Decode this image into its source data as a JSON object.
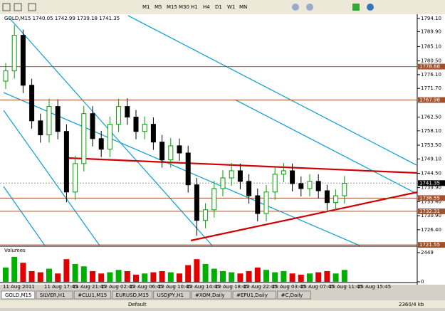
{
  "toolbar": {
    "timeframes": [
      "M1",
      "M5",
      "M15",
      "M30",
      "H1",
      "H4",
      "D1",
      "W1",
      "MN"
    ]
  },
  "chart": {
    "header": {
      "symbol": "GOLD,M15",
      "open": 1740.05,
      "high": 1742.99,
      "low": 1739.18,
      "close": 1741.35
    },
    "ylim": [
      1721.35,
      1795
    ],
    "yticks": [
      {
        "value": 1794.1,
        "label": "1794.10"
      },
      {
        "value": 1789.9,
        "label": "1789.90"
      },
      {
        "value": 1785.1,
        "label": "1785.10"
      },
      {
        "value": 1780.5,
        "label": "1780.50"
      },
      {
        "value": 1776.1,
        "label": "1776.10"
      },
      {
        "value": 1771.7,
        "label": "1771.70"
      },
      {
        "value": 1762.5,
        "label": "1762.50"
      },
      {
        "value": 1758.1,
        "label": "1758.10"
      },
      {
        "value": 1753.5,
        "label": "1753.50"
      },
      {
        "value": 1749.1,
        "label": "1749.10"
      },
      {
        "value": 1744.5,
        "label": "1744.50"
      },
      {
        "value": 1739.9,
        "label": "1739.90"
      },
      {
        "value": 1735.4,
        "label": "1735.40"
      },
      {
        "value": 1730.9,
        "label": "1730.90"
      },
      {
        "value": 1726.4,
        "label": "1726.40"
      }
    ],
    "levels": [
      1778.68,
      1767.98,
      1736.55,
      1732.31,
      1721.55
    ],
    "up_color": "#00a000",
    "down_color": "#000000",
    "candles": {
      "open": [
        1774.0,
        1777.3,
        1788.7,
        1772.7,
        1761.3,
        1756.8,
        1765.9,
        1757.9,
        1738.5,
        1747.6,
        1763.6,
        1755.6,
        1752.2,
        1760.2,
        1765.9,
        1762.5,
        1757.9,
        1760.2,
        1754.5,
        1748.8,
        1753.3,
        1751.0,
        1740.8,
        1729.4,
        1732.8,
        1739.6,
        1743.0,
        1745.3,
        1741.9,
        1737.3,
        1731.6,
        1738.5,
        1744.2,
        1745.3,
        1741.2,
        1739.6,
        1741.9,
        1738.9,
        1735.1,
        1737.3
      ],
      "high": [
        1779.8,
        1792.0,
        1790.5,
        1774.8,
        1763.6,
        1768.4,
        1768.2,
        1760.2,
        1750.1,
        1766.1,
        1766.0,
        1758.1,
        1762.7,
        1768.4,
        1768.5,
        1764.8,
        1762.7,
        1762.4,
        1756.8,
        1755.8,
        1755.6,
        1753.3,
        1743.0,
        1734.9,
        1742.1,
        1745.5,
        1747.8,
        1747.6,
        1744.2,
        1739.6,
        1740.8,
        1746.7,
        1747.8,
        1747.6,
        1743.5,
        1744.2,
        1744.2,
        1740.8,
        1739.4,
        1743.6
      ],
      "low": [
        1771.5,
        1774.8,
        1770.2,
        1758.8,
        1754.3,
        1754.3,
        1755.4,
        1735.2,
        1736.0,
        1745.1,
        1753.1,
        1749.7,
        1749.7,
        1757.7,
        1760.0,
        1755.4,
        1755.4,
        1752.0,
        1746.3,
        1746.3,
        1748.5,
        1738.3,
        1724.5,
        1726.9,
        1730.3,
        1737.1,
        1740.5,
        1739.4,
        1734.8,
        1729.1,
        1729.1,
        1736.0,
        1741.7,
        1738.7,
        1737.1,
        1737.1,
        1736.4,
        1732.6,
        1732.6,
        1734.8
      ],
      "close": [
        1777.3,
        1788.7,
        1772.7,
        1761.3,
        1756.8,
        1765.9,
        1757.9,
        1738.5,
        1747.6,
        1763.6,
        1755.6,
        1752.2,
        1760.2,
        1765.9,
        1762.5,
        1757.9,
        1760.2,
        1754.5,
        1748.8,
        1753.3,
        1751.0,
        1740.8,
        1729.4,
        1732.8,
        1739.6,
        1743.0,
        1745.3,
        1741.9,
        1737.3,
        1731.6,
        1738.5,
        1744.2,
        1745.3,
        1741.2,
        1739.6,
        1741.9,
        1738.9,
        1735.1,
        1737.3,
        1741.3
      ]
    },
    "volume": {
      "label": "Volumes",
      "ylim": [
        0,
        2449
      ],
      "yticks": [
        2449,
        0
      ],
      "values": [
        1200,
        2100,
        1600,
        900,
        800,
        1100,
        700,
        1900,
        1500,
        1300,
        900,
        700,
        800,
        1000,
        900,
        600,
        700,
        800,
        900,
        800,
        700,
        1400,
        1900,
        1500,
        1100,
        900,
        800,
        700,
        900,
        1200,
        1000,
        800,
        900,
        700,
        600,
        700,
        800,
        900,
        700,
        1000
      ]
    },
    "time_labels": [
      "11 Aug 2011",
      "11 Aug 17:45",
      "11 Aug 21:45",
      "12 Aug 02:45",
      "12 Aug 06:45",
      "12 Aug 10:45",
      "12 Aug 14:45",
      "12 Aug 18:45",
      "12 Aug 22:45",
      "15 Aug 03:45",
      "15 Aug 07:45",
      "15 Aug 11:45",
      "15 Aug 15:45"
    ]
  },
  "tabs": [
    "GOLD,M15",
    "SILVER,H1",
    "#CLU1,M15",
    "EURUSD,M15",
    "USDJPY,H1",
    "#XOM,Daily",
    "#EPU1,Daily",
    "#C,Daily"
  ],
  "status": {
    "profile": "Default",
    "traffic": "2360/4 kb"
  }
}
